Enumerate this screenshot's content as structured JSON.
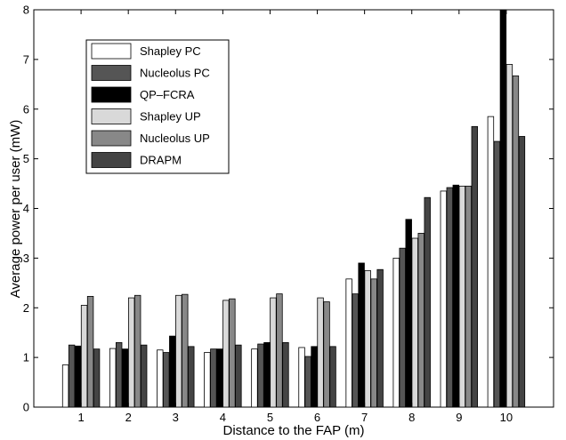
{
  "chart_data": {
    "type": "bar",
    "title": "",
    "xlabel": "Distance to the FAP (m)",
    "ylabel": "Average power per user (mW)",
    "categories": [
      "1",
      "2",
      "3",
      "4",
      "5",
      "6",
      "7",
      "8",
      "9",
      "10"
    ],
    "ylim": [
      0,
      8
    ],
    "yticks": [
      "0",
      "1",
      "2",
      "3",
      "4",
      "5",
      "6",
      "7",
      "8"
    ],
    "grid": false,
    "legend_position": "top-left",
    "series": [
      {
        "name": "Shapley PC",
        "color": "#ffffff",
        "values": [
          0.85,
          1.18,
          1.15,
          1.1,
          1.17,
          1.2,
          2.58,
          3.0,
          4.35,
          5.85
        ]
      },
      {
        "name": "Nucleolus PC",
        "color": "#555555",
        "values": [
          1.25,
          1.3,
          1.1,
          1.17,
          1.27,
          1.02,
          2.28,
          3.2,
          4.42,
          5.35
        ]
      },
      {
        "name": "QP–FCRA",
        "color": "#000000",
        "values": [
          1.23,
          1.17,
          1.43,
          1.17,
          1.3,
          1.22,
          2.9,
          3.78,
          4.47,
          8.0
        ]
      },
      {
        "name": "Shapley UP",
        "color": "#d9d9d9",
        "values": [
          2.05,
          2.2,
          2.25,
          2.15,
          2.2,
          2.2,
          2.75,
          3.4,
          4.45,
          6.9
        ]
      },
      {
        "name": "Nucleolus UP",
        "color": "#888888",
        "values": [
          2.23,
          2.25,
          2.27,
          2.18,
          2.28,
          2.12,
          2.58,
          3.5,
          4.45,
          6.67
        ]
      },
      {
        "name": "DRAPM",
        "color": "#444444",
        "values": [
          1.17,
          1.25,
          1.22,
          1.25,
          1.3,
          1.22,
          2.77,
          4.22,
          5.65,
          5.45
        ]
      }
    ]
  }
}
